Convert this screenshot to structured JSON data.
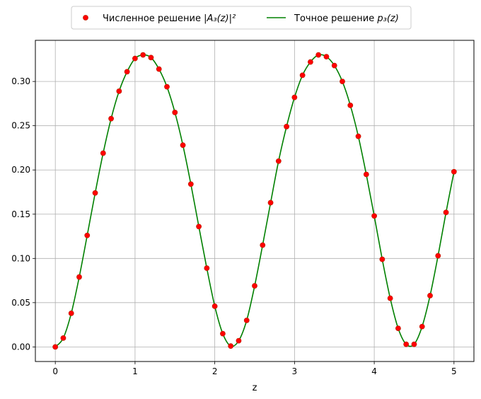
{
  "chart_data": {
    "type": "line",
    "title": "",
    "xlabel": "z",
    "ylabel": "",
    "xlim": [
      -0.25,
      5.25
    ],
    "ylim": [
      -0.0165,
      0.3465
    ],
    "grid": true,
    "legend_position": "top-center, above plot",
    "x_ticks": [
      "0",
      "1",
      "2",
      "3",
      "4",
      "5"
    ],
    "y_ticks": [
      "0.00",
      "0.05",
      "0.10",
      "0.15",
      "0.20",
      "0.25",
      "0.30"
    ],
    "colors": {
      "numeric": "#ff0000",
      "numeric_edge": "#b22200",
      "exact": "#008000"
    },
    "series": [
      {
        "name_prefix": "Численное решение ",
        "name_math": "|A₃(z)|²",
        "style": "markers",
        "x": [
          0.0,
          0.1,
          0.2,
          0.3,
          0.4,
          0.5,
          0.6,
          0.7,
          0.8,
          0.9,
          1.0,
          1.1,
          1.2,
          1.3,
          1.4,
          1.5,
          1.6,
          1.7,
          1.8,
          1.9,
          2.0,
          2.1,
          2.2,
          2.3,
          2.4,
          2.5,
          2.6,
          2.7,
          2.8,
          2.9,
          3.0,
          3.1,
          3.2,
          3.3,
          3.4,
          3.5,
          3.6,
          3.7,
          3.8,
          3.9,
          4.0,
          4.1,
          4.2,
          4.3,
          4.4,
          4.5,
          4.6,
          4.7,
          4.8,
          4.9,
          5.0
        ],
        "y": [
          0.0,
          0.01,
          0.038,
          0.079,
          0.126,
          0.174,
          0.219,
          0.258,
          0.289,
          0.311,
          0.326,
          0.33,
          0.327,
          0.314,
          0.294,
          0.265,
          0.228,
          0.184,
          0.136,
          0.089,
          0.046,
          0.015,
          0.001,
          0.007,
          0.03,
          0.069,
          0.115,
          0.163,
          0.21,
          0.249,
          0.282,
          0.307,
          0.322,
          0.33,
          0.328,
          0.318,
          0.3,
          0.273,
          0.238,
          0.195,
          0.148,
          0.099,
          0.055,
          0.021,
          0.003,
          0.003,
          0.023,
          0.058,
          0.103,
          0.152,
          0.198
        ]
      },
      {
        "name_prefix": "Точное решение ",
        "name_math": "p₃(z)",
        "style": "line",
        "x": [
          0.0,
          0.1,
          0.2,
          0.3,
          0.4,
          0.5,
          0.6,
          0.7,
          0.8,
          0.9,
          1.0,
          1.1,
          1.2,
          1.3,
          1.4,
          1.5,
          1.6,
          1.7,
          1.8,
          1.9,
          2.0,
          2.1,
          2.2,
          2.3,
          2.4,
          2.5,
          2.6,
          2.7,
          2.8,
          2.9,
          3.0,
          3.1,
          3.2,
          3.3,
          3.4,
          3.5,
          3.6,
          3.7,
          3.8,
          3.9,
          4.0,
          4.1,
          4.2,
          4.3,
          4.4,
          4.5,
          4.6,
          4.7,
          4.8,
          4.9,
          5.0
        ],
        "y": [
          0.0,
          0.01,
          0.038,
          0.079,
          0.126,
          0.174,
          0.219,
          0.258,
          0.289,
          0.311,
          0.326,
          0.33,
          0.327,
          0.314,
          0.294,
          0.265,
          0.228,
          0.184,
          0.136,
          0.089,
          0.046,
          0.015,
          0.001,
          0.007,
          0.03,
          0.069,
          0.115,
          0.163,
          0.21,
          0.249,
          0.282,
          0.307,
          0.322,
          0.33,
          0.328,
          0.318,
          0.3,
          0.273,
          0.238,
          0.195,
          0.148,
          0.099,
          0.055,
          0.021,
          0.003,
          0.003,
          0.023,
          0.058,
          0.103,
          0.152,
          0.198
        ]
      }
    ]
  }
}
